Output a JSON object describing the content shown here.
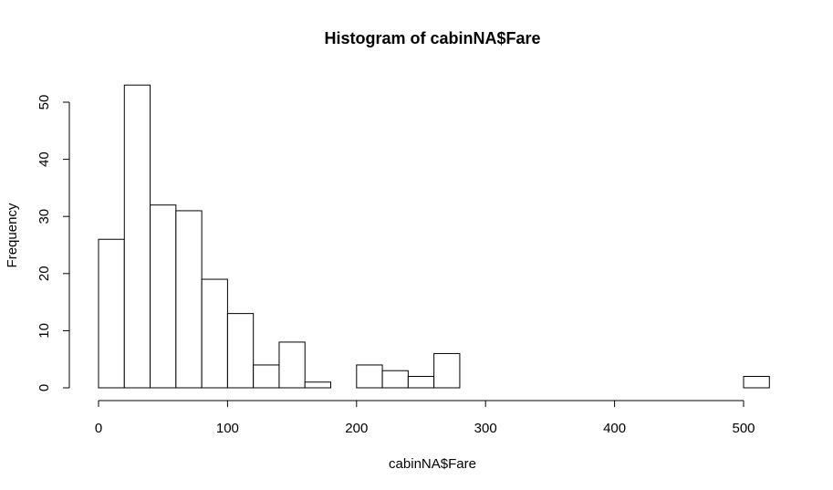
{
  "chart_data": {
    "type": "bar",
    "title": "Histogram of cabinNA$Fare",
    "xlabel": "cabinNA$Fare",
    "ylabel": "Frequency",
    "xlim": [
      0,
      520
    ],
    "ylim": [
      0,
      53
    ],
    "x_ticks": [
      0,
      100,
      200,
      300,
      400,
      500
    ],
    "y_ticks": [
      0,
      10,
      20,
      30,
      40,
      50
    ],
    "bin_width": 20,
    "bins": [
      {
        "x0": 0,
        "x1": 20,
        "count": 26
      },
      {
        "x0": 20,
        "x1": 40,
        "count": 53
      },
      {
        "x0": 40,
        "x1": 60,
        "count": 32
      },
      {
        "x0": 60,
        "x1": 80,
        "count": 31
      },
      {
        "x0": 80,
        "x1": 100,
        "count": 19
      },
      {
        "x0": 100,
        "x1": 120,
        "count": 13
      },
      {
        "x0": 120,
        "x1": 140,
        "count": 4
      },
      {
        "x0": 140,
        "x1": 160,
        "count": 8
      },
      {
        "x0": 160,
        "x1": 180,
        "count": 1
      },
      {
        "x0": 180,
        "x1": 200,
        "count": 0
      },
      {
        "x0": 200,
        "x1": 220,
        "count": 4
      },
      {
        "x0": 220,
        "x1": 240,
        "count": 3
      },
      {
        "x0": 240,
        "x1": 260,
        "count": 2
      },
      {
        "x0": 260,
        "x1": 280,
        "count": 6
      },
      {
        "x0": 280,
        "x1": 300,
        "count": 0
      },
      {
        "x0": 300,
        "x1": 320,
        "count": 0
      },
      {
        "x0": 320,
        "x1": 340,
        "count": 0
      },
      {
        "x0": 340,
        "x1": 360,
        "count": 0
      },
      {
        "x0": 360,
        "x1": 380,
        "count": 0
      },
      {
        "x0": 380,
        "x1": 400,
        "count": 0
      },
      {
        "x0": 400,
        "x1": 420,
        "count": 0
      },
      {
        "x0": 420,
        "x1": 440,
        "count": 0
      },
      {
        "x0": 440,
        "x1": 460,
        "count": 0
      },
      {
        "x0": 460,
        "x1": 480,
        "count": 0
      },
      {
        "x0": 480,
        "x1": 500,
        "count": 0
      },
      {
        "x0": 500,
        "x1": 520,
        "count": 2
      }
    ]
  }
}
